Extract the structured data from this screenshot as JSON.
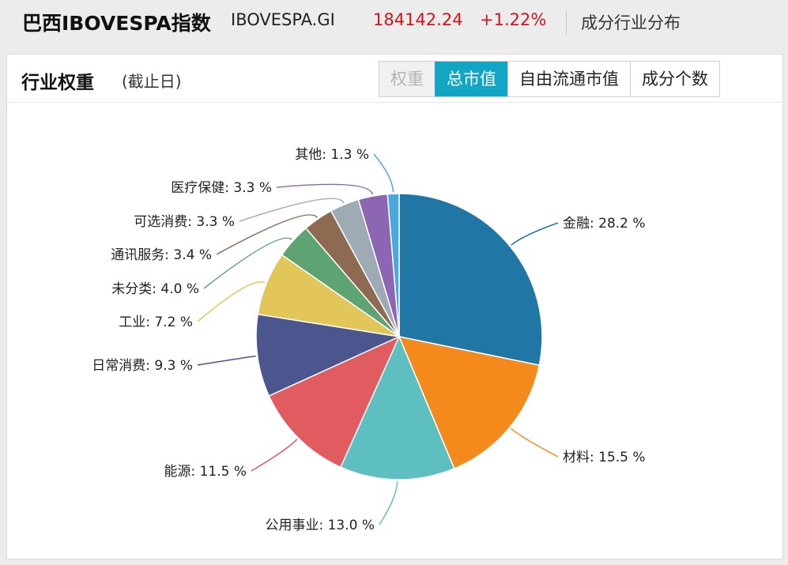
{
  "header": {
    "index_name": "巴西IBOVESPA指数",
    "index_code": "IBOVESPA.GI",
    "price": "184142.24",
    "change": "+1.22%",
    "link": "成分行业分布"
  },
  "panel": {
    "title": "行业权重",
    "subtitle": "(截止日)",
    "tabs": [
      {
        "label": "权重",
        "state": "disabled"
      },
      {
        "label": "总市值",
        "state": "active"
      },
      {
        "label": "自由流通市值",
        "state": "normal"
      },
      {
        "label": "成分个数",
        "state": "normal"
      }
    ]
  },
  "chart_data": {
    "type": "pie",
    "start": "12 o'clock, clockwise",
    "slices": [
      {
        "name": "金融",
        "value": 28.2,
        "label": "金融: 28.2 %",
        "color": "#2077a6"
      },
      {
        "name": "材料",
        "value": 15.5,
        "label": "材料: 15.5 %",
        "color": "#f48a1c"
      },
      {
        "name": "公用事业",
        "value": 13.0,
        "label": "公用事业: 13.0 %",
        "color": "#5dbfbf"
      },
      {
        "name": "能源",
        "value": 11.5,
        "label": "能源: 11.5 %",
        "color": "#e05c60"
      },
      {
        "name": "日常消费",
        "value": 9.3,
        "label": "日常消费: 9.3 %",
        "color": "#4a568d"
      },
      {
        "name": "工业",
        "value": 7.2,
        "label": "工业: 7.2 %",
        "color": "#e2c659"
      },
      {
        "name": "未分类",
        "value": 4.0,
        "label": "未分类: 4.0 %",
        "color": "#5ea472"
      },
      {
        "name": "通讯服务",
        "value": 3.4,
        "label": "通讯服务: 3.4 %",
        "color": "#8e6a52"
      },
      {
        "name": "可选消费",
        "value": 3.3,
        "label": "可选消费: 3.3 %",
        "color": "#9eaab4"
      },
      {
        "name": "医疗保健",
        "value": 3.3,
        "label": "医疗保健: 3.3 %",
        "color": "#8c66b2"
      },
      {
        "name": "其他",
        "value": 1.3,
        "label": "其他: 1.3 %",
        "color": "#4aa9dc"
      }
    ]
  }
}
